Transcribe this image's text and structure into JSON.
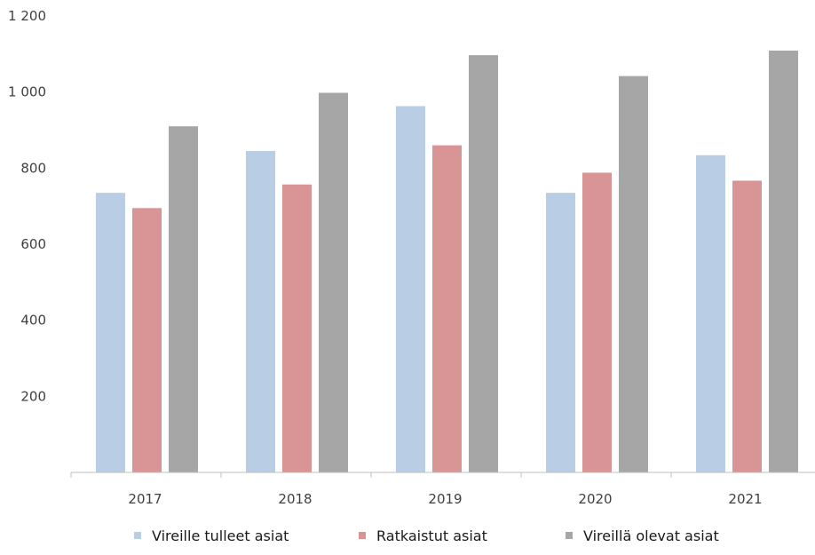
{
  "chart_data": {
    "type": "bar",
    "title": "",
    "xlabel": "",
    "ylabel": "",
    "categories": [
      "2017",
      "2018",
      "2019",
      "2020",
      "2021"
    ],
    "ylim": [
      0,
      1200
    ],
    "yticks": [
      200,
      400,
      600,
      800,
      1000,
      1200
    ],
    "ytick_labels": [
      "200",
      "400",
      "600",
      "800",
      "1 000",
      "1 200"
    ],
    "grid": false,
    "legend_position": "bottom",
    "series": [
      {
        "name": "Vireille tulleet asiat",
        "color": "#b9cde5",
        "values": [
          735,
          845,
          963,
          735,
          834
        ]
      },
      {
        "name": "Ratkaistut asiat",
        "color": "#d99595",
        "values": [
          695,
          757,
          860,
          788,
          767
        ]
      },
      {
        "name": "Vireillä olevat asiat",
        "color": "#a6a6a6",
        "values": [
          910,
          998,
          1097,
          1042,
          1109
        ]
      }
    ]
  }
}
